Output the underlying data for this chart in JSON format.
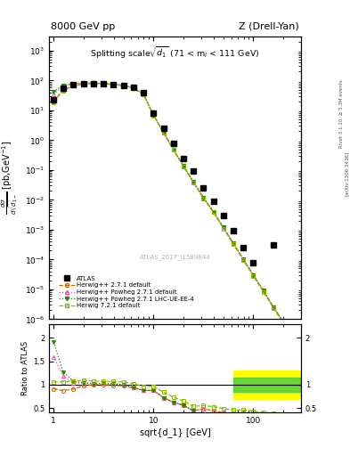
{
  "title_left": "8000 GeV pp",
  "title_right": "Z (Drell-Yan)",
  "plot_title": "Splitting scale$\\sqrt{d_1}$ (71 < m$_l$ < 111 GeV)",
  "ylabel_main": "d$\\sigma$\n/dsqrt(d$_{1-}$) [pb,GeV$^{-1}$]",
  "ylabel_ratio": "Ratio to ATLAS",
  "xlabel": "sqrt{d_1} [GeV]",
  "watermark": "ATLAS_2017_I1589844",
  "xlim": [
    0.9,
    300
  ],
  "ylim_main": [
    1e-06,
    3000.0
  ],
  "ylim_ratio": [
    0.4,
    2.3
  ],
  "atlas_x": [
    1.0,
    1.25,
    1.58,
    2.0,
    2.51,
    3.16,
    3.98,
    5.01,
    6.31,
    7.94,
    10.0,
    12.6,
    15.8,
    19.9,
    25.1,
    31.6,
    39.8,
    50.1,
    63.1,
    79.4,
    100.0,
    158.0
  ],
  "atlas_y": [
    22,
    55,
    75,
    80,
    80,
    78,
    75,
    70,
    60,
    40,
    8,
    2.5,
    0.8,
    0.25,
    0.09,
    0.025,
    0.009,
    0.003,
    0.0009,
    0.00025,
    8e-05,
    0.0003
  ],
  "hw271_x": [
    1.0,
    1.25,
    1.58,
    2.0,
    2.51,
    3.16,
    3.98,
    5.01,
    6.31,
    7.94,
    10.0,
    12.6,
    15.8,
    19.9,
    25.1,
    31.6,
    39.8,
    50.1,
    63.1,
    79.4,
    100.0,
    125.9,
    158.5,
    199.5
  ],
  "hw271_y": [
    20,
    48,
    68,
    78,
    80,
    78,
    74,
    68,
    56,
    35,
    7.0,
    1.8,
    0.5,
    0.14,
    0.04,
    0.012,
    0.004,
    0.0012,
    0.00035,
    0.0001,
    3e-05,
    9e-06,
    2.6e-06,
    8e-07
  ],
  "hwp271_x": [
    1.0,
    1.25,
    1.58,
    2.0,
    2.51,
    3.16,
    3.98,
    5.01,
    6.31,
    7.94,
    10.0,
    12.6,
    15.8,
    19.9,
    25.1,
    31.6,
    39.8,
    50.1,
    63.1,
    79.4,
    100.0,
    125.9,
    158.5,
    199.5
  ],
  "hwp271_y": [
    35,
    65,
    78,
    82,
    82,
    80,
    76,
    70,
    56,
    35,
    7.0,
    1.8,
    0.5,
    0.14,
    0.04,
    0.012,
    0.004,
    0.0012,
    0.00035,
    0.0001,
    3e-05,
    9e-06,
    2.6e-06,
    8e-07
  ],
  "hwplhc_x": [
    1.0,
    1.25,
    1.58,
    2.0,
    2.51,
    3.16,
    3.98,
    5.01,
    6.31,
    7.94,
    10.0,
    12.6,
    15.8,
    19.9,
    25.1,
    31.6,
    39.8,
    50.1,
    63.1,
    79.4,
    100.0,
    125.9,
    158.5,
    199.5
  ],
  "hwplhc_y": [
    42,
    70,
    80,
    83,
    82,
    80,
    76,
    70,
    56,
    35,
    7.0,
    1.8,
    0.5,
    0.14,
    0.04,
    0.012,
    0.004,
    0.0012,
    0.00035,
    0.0001,
    3e-05,
    9e-06,
    2.6e-06,
    8e-07
  ],
  "hw721_x": [
    1.0,
    1.25,
    1.58,
    2.0,
    2.51,
    3.16,
    3.98,
    5.01,
    6.31,
    7.94,
    10.0,
    12.6,
    15.8,
    19.9,
    25.1,
    31.6,
    39.8,
    50.1,
    63.1,
    79.4,
    100.0,
    125.9,
    158.5,
    199.5
  ],
  "hw721_y": [
    19,
    46,
    66,
    76,
    78,
    77,
    73,
    67,
    55,
    34,
    6.8,
    1.75,
    0.48,
    0.13,
    0.038,
    0.011,
    0.0038,
    0.0011,
    0.00032,
    9.5e-05,
    2.8e-05,
    8.2e-06,
    2.4e-06,
    7e-07
  ],
  "r_hw271_x": [
    1.0,
    1.25,
    1.58,
    2.0,
    2.51,
    3.16,
    3.98,
    5.01,
    6.31,
    7.94,
    10.0,
    12.6,
    15.8,
    19.9,
    25.1,
    31.6,
    39.8,
    50.1,
    63.1,
    79.4,
    100.0,
    125.9,
    158.5
  ],
  "r_hw271_y": [
    0.91,
    0.87,
    0.905,
    0.975,
    1.0,
    1.0,
    0.987,
    0.971,
    0.933,
    0.875,
    0.875,
    0.72,
    0.625,
    0.56,
    0.444,
    0.48,
    0.444,
    0.4,
    0.389,
    0.4,
    0.375,
    0.36,
    0.35
  ],
  "r_hwp271_x": [
    1.0,
    1.25,
    1.58,
    2.0,
    2.51,
    3.16,
    3.98,
    5.01,
    6.31,
    7.94,
    10.0,
    12.6,
    15.8,
    19.9,
    25.1,
    31.6
  ],
  "r_hwp271_y": [
    1.59,
    1.18,
    1.04,
    1.025,
    1.025,
    1.026,
    1.013,
    1.0,
    0.933,
    0.875,
    0.875,
    0.72,
    0.625,
    0.56,
    0.44,
    0.48
  ],
  "r_hwplhc_x": [
    1.0,
    1.25,
    1.58,
    2.0,
    2.51,
    3.16,
    3.98,
    5.01,
    6.31,
    7.94,
    10.0,
    12.6,
    15.8,
    19.9,
    25.1
  ],
  "r_hwplhc_y": [
    1.91,
    1.27,
    1.07,
    1.037,
    1.025,
    1.026,
    1.013,
    1.0,
    0.933,
    0.875,
    0.875,
    0.72,
    0.625,
    0.56,
    0.44
  ],
  "r_hw721_x": [
    1.0,
    1.25,
    1.58,
    2.0,
    2.51,
    3.16,
    3.98,
    5.01,
    6.31,
    7.94,
    10.0,
    12.6,
    15.8,
    19.9,
    25.1,
    31.6,
    39.8,
    50.1,
    63.1,
    79.4,
    100.0,
    125.9,
    158.5
  ],
  "r_hw721_y": [
    1.05,
    1.06,
    1.08,
    1.09,
    1.075,
    1.07,
    1.065,
    1.057,
    1.017,
    0.967,
    0.96,
    0.84,
    0.73,
    0.65,
    0.535,
    0.55,
    0.53,
    0.49,
    0.46,
    0.46,
    0.43,
    0.41,
    0.38
  ],
  "c_atlas": "#000000",
  "c_hw271": "#cc6600",
  "c_hwp271": "#ff44aa",
  "c_hwplhc": "#228800",
  "c_hw721": "#88bb00"
}
